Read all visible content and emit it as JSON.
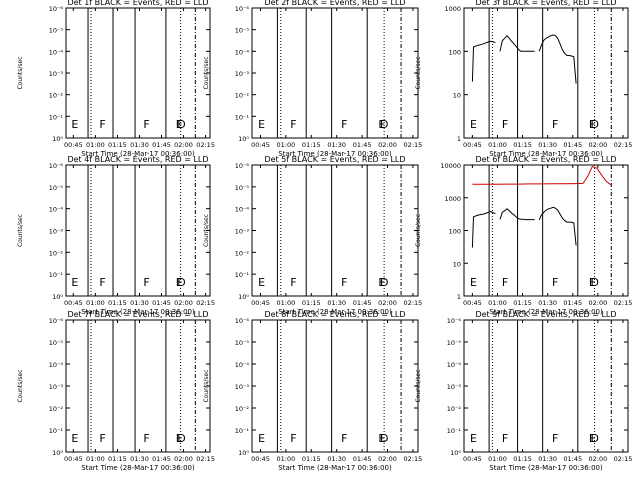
{
  "chart_data": [
    {
      "type": "line",
      "title": "Det 1f BLACK = Events, RED = LLD",
      "xlabel": "Start Time (28-Mar-17 00:36:00)",
      "ylabel": "Counts/sec",
      "x_ticks": [
        "00:45",
        "01:00",
        "01:15",
        "01:30",
        "01:45",
        "02:00",
        "02:15"
      ],
      "y_ticks": [
        "10⁰",
        "10⁻¹",
        "10⁻²",
        "10⁻³",
        "10⁻⁴",
        "10⁻⁵",
        "10⁻⁶"
      ],
      "scale": "log",
      "markers": [
        {
          "time": "00:43",
          "letter": "E"
        },
        {
          "time": "01:02",
          "letter": "F"
        },
        {
          "time": "01:32",
          "letter": "F"
        },
        {
          "time": "01:54",
          "letter": "E"
        },
        {
          "time": "01:55",
          "letter": "D"
        }
      ],
      "vlines_solid": [
        "00:55",
        "01:12",
        "01:27",
        "01:48"
      ],
      "vlines_dotted": [
        "00:57",
        "01:58"
      ],
      "vlines_dashdot": [
        "02:08"
      ],
      "series": []
    },
    {
      "type": "line",
      "title": "Det 2f BLACK = Events, RED = LLD",
      "xlabel": "Start Time (28-Mar-17 00:36:00)",
      "ylabel": "Counts/sec",
      "x_ticks": [
        "00:45",
        "01:00",
        "01:15",
        "01:30",
        "01:45",
        "02:00",
        "02:15"
      ],
      "y_ticks": [
        "10⁰",
        "10⁻¹",
        "10⁻²",
        "10⁻³",
        "10⁻⁴",
        "10⁻⁵",
        "10⁻⁶"
      ],
      "scale": "log",
      "markers": [
        {
          "time": "00:43",
          "letter": "E"
        },
        {
          "time": "01:02",
          "letter": "F"
        },
        {
          "time": "01:32",
          "letter": "F"
        },
        {
          "time": "01:54",
          "letter": "E"
        },
        {
          "time": "01:55",
          "letter": "D"
        }
      ],
      "vlines_solid": [
        "00:55",
        "01:12",
        "01:27",
        "01:48"
      ],
      "vlines_dotted": [
        "00:57",
        "01:58"
      ],
      "vlines_dashdot": [
        "02:08"
      ],
      "series": []
    },
    {
      "type": "line",
      "title": "Det 3f BLACK = Events, RED = LLD",
      "xlabel": "Start Time (28-Mar-17 00:36:00)",
      "ylabel": "Counts/sec",
      "x_ticks": [
        "00:45",
        "01:00",
        "01:15",
        "01:30",
        "01:45",
        "02:00",
        "02:15"
      ],
      "y_ticks": [
        "1",
        "10",
        "100",
        "1000"
      ],
      "scale": "log",
      "markers": [
        {
          "time": "00:43",
          "letter": "E"
        },
        {
          "time": "01:02",
          "letter": "F"
        },
        {
          "time": "01:32",
          "letter": "F"
        },
        {
          "time": "01:54",
          "letter": "E"
        },
        {
          "time": "01:55",
          "letter": "D"
        }
      ],
      "vlines_solid": [
        "00:55",
        "01:12",
        "01:27",
        "01:48"
      ],
      "vlines_dotted": [
        "00:57",
        "01:58"
      ],
      "vlines_dashdot": [
        "02:08"
      ],
      "series": [
        {
          "color": "#000000",
          "segments": [
            [
              [
                0,
                20
              ],
              [
                0.5,
                125
              ],
              [
                1,
                130
              ],
              [
                2,
                135
              ],
              [
                3,
                140
              ],
              [
                4,
                145
              ],
              [
                5,
                150
              ],
              [
                6,
                158
              ],
              [
                7,
                165
              ],
              [
                8,
                170
              ],
              [
                9,
                165
              ],
              [
                10,
                160
              ]
            ],
            [
              [
                12,
                100
              ],
              [
                13,
                175
              ],
              [
                14,
                200
              ],
              [
                15,
                230
              ],
              [
                16,
                200
              ],
              [
                17,
                170
              ],
              [
                18,
                150
              ],
              [
                19,
                130
              ],
              [
                20,
                110
              ],
              [
                21,
                100
              ],
              [
                22,
                100
              ],
              [
                23,
                100
              ],
              [
                24,
                100
              ],
              [
                25,
                100
              ],
              [
                26,
                100
              ],
              [
                27,
                100
              ]
            ],
            [
              [
                29,
                100
              ],
              [
                30,
                140
              ],
              [
                31,
                180
              ],
              [
                32,
                200
              ],
              [
                33,
                215
              ],
              [
                34,
                230
              ],
              [
                35,
                240
              ],
              [
                36,
                230
              ],
              [
                37,
                200
              ],
              [
                38,
                150
              ],
              [
                39,
                110
              ],
              [
                40,
                90
              ],
              [
                41,
                80
              ],
              [
                42,
                80
              ],
              [
                43,
                78
              ],
              [
                44,
                75
              ],
              [
                45,
                18
              ]
            ]
          ]
        }
      ]
    },
    {
      "type": "line",
      "title": "Det 4f BLACK = Events, RED = LLD",
      "xlabel": "Start Time (28-Mar-17 00:36:00)",
      "ylabel": "Counts/sec",
      "x_ticks": [
        "00:45",
        "01:00",
        "01:15",
        "01:30",
        "01:45",
        "02:00",
        "02:15"
      ],
      "y_ticks": [
        "10⁰",
        "10⁻¹",
        "10⁻²",
        "10⁻³",
        "10⁻⁴",
        "10⁻⁵",
        "10⁻⁶"
      ],
      "scale": "log",
      "markers": [
        {
          "time": "00:43",
          "letter": "E"
        },
        {
          "time": "01:02",
          "letter": "F"
        },
        {
          "time": "01:32",
          "letter": "F"
        },
        {
          "time": "01:54",
          "letter": "E"
        },
        {
          "time": "01:55",
          "letter": "D"
        }
      ],
      "vlines_solid": [
        "00:55",
        "01:12",
        "01:27",
        "01:48"
      ],
      "vlines_dotted": [
        "00:57",
        "01:58"
      ],
      "vlines_dashdot": [
        "02:08"
      ],
      "series": []
    },
    {
      "type": "line",
      "title": "Det 5f BLACK = Events, RED = LLD",
      "xlabel": "Start Time (28-Mar-17 00:36:00)",
      "ylabel": "Counts/sec",
      "x_ticks": [
        "00:45",
        "01:00",
        "01:15",
        "01:30",
        "01:45",
        "02:00",
        "02:15"
      ],
      "y_ticks": [
        "10⁰",
        "10⁻¹",
        "10⁻²",
        "10⁻³",
        "10⁻⁴",
        "10⁻⁵",
        "10⁻⁶"
      ],
      "scale": "log",
      "markers": [
        {
          "time": "00:43",
          "letter": "E"
        },
        {
          "time": "01:02",
          "letter": "F"
        },
        {
          "time": "01:32",
          "letter": "F"
        },
        {
          "time": "01:54",
          "letter": "E"
        },
        {
          "time": "01:55",
          "letter": "D"
        }
      ],
      "vlines_solid": [
        "00:55",
        "01:12",
        "01:27",
        "01:48"
      ],
      "vlines_dotted": [
        "00:57",
        "01:58"
      ],
      "vlines_dashdot": [
        "02:08"
      ],
      "series": []
    },
    {
      "type": "line",
      "title": "Det 6f BLACK = Events, RED = LLD",
      "xlabel": "Start Time (28-Mar-17 00:36:00)",
      "ylabel": "Counts/sec",
      "x_ticks": [
        "00:45",
        "01:00",
        "01:15",
        "01:30",
        "01:45",
        "02:00",
        "02:15"
      ],
      "y_ticks": [
        "1",
        "10",
        "100",
        "1000",
        "10000"
      ],
      "scale": "log",
      "markers": [
        {
          "time": "00:43",
          "letter": "E"
        },
        {
          "time": "01:02",
          "letter": "F"
        },
        {
          "time": "01:32",
          "letter": "F"
        },
        {
          "time": "01:54",
          "letter": "E"
        },
        {
          "time": "01:55",
          "letter": "D"
        }
      ],
      "vlines_solid": [
        "00:55",
        "01:12",
        "01:27",
        "01:48"
      ],
      "vlines_dotted": [
        "00:57",
        "01:58"
      ],
      "vlines_dashdot": [
        "02:08"
      ],
      "series": [
        {
          "color": "#000000",
          "segments": [
            [
              [
                0,
                30
              ],
              [
                0.5,
                260
              ],
              [
                1,
                270
              ],
              [
                2,
                290
              ],
              [
                3,
                300
              ],
              [
                4,
                310
              ],
              [
                5,
                320
              ],
              [
                6,
                340
              ],
              [
                7,
                360
              ],
              [
                8,
                380
              ],
              [
                9,
                350
              ],
              [
                10,
                330
              ]
            ],
            [
              [
                12,
                220
              ],
              [
                13,
                360
              ],
              [
                14,
                400
              ],
              [
                15,
                460
              ],
              [
                16,
                400
              ],
              [
                17,
                340
              ],
              [
                18,
                300
              ],
              [
                19,
                260
              ],
              [
                20,
                230
              ],
              [
                21,
                220
              ],
              [
                22,
                220
              ],
              [
                23,
                215
              ],
              [
                24,
                215
              ],
              [
                25,
                215
              ],
              [
                26,
                215
              ],
              [
                27,
                215
              ]
            ],
            [
              [
                29,
                210
              ],
              [
                30,
                300
              ],
              [
                31,
                360
              ],
              [
                32,
                420
              ],
              [
                33,
                460
              ],
              [
                34,
                480
              ],
              [
                35,
                510
              ],
              [
                36,
                480
              ],
              [
                37,
                420
              ],
              [
                38,
                320
              ],
              [
                39,
                240
              ],
              [
                40,
                200
              ],
              [
                41,
                180
              ],
              [
                42,
                180
              ],
              [
                43,
                178
              ],
              [
                44,
                170
              ],
              [
                45,
                35
              ]
            ]
          ]
        },
        {
          "color": "#cc0000",
          "segments": [
            [
              [
                0,
                2600
              ],
              [
                5,
                2600
              ],
              [
                10,
                2600
              ],
              [
                15,
                2620
              ],
              [
                20,
                2620
              ],
              [
                25,
                2650
              ],
              [
                30,
                2650
              ],
              [
                35,
                2660
              ],
              [
                40,
                2680
              ],
              [
                45,
                2700
              ],
              [
                48,
                2750
              ],
              [
                50,
                4500
              ],
              [
                52,
                9000
              ],
              [
                54,
                8000
              ],
              [
                56,
                5000
              ],
              [
                58,
                3200
              ],
              [
                60,
                2500
              ]
            ]
          ]
        }
      ]
    },
    {
      "type": "line",
      "title": "Det 7f BLACK = Events, RED = LLD",
      "xlabel": "Start Time (28-Mar-17 00:36:00)",
      "ylabel": "Counts/sec",
      "x_ticks": [
        "00:45",
        "01:00",
        "01:15",
        "01:30",
        "01:45",
        "02:00",
        "02:15"
      ],
      "y_ticks": [
        "10⁰",
        "10⁻¹",
        "10⁻²",
        "10⁻³",
        "10⁻⁴",
        "10⁻⁵",
        "10⁻⁶"
      ],
      "scale": "log",
      "markers": [
        {
          "time": "00:43",
          "letter": "E"
        },
        {
          "time": "01:02",
          "letter": "F"
        },
        {
          "time": "01:32",
          "letter": "F"
        },
        {
          "time": "01:54",
          "letter": "E"
        },
        {
          "time": "01:55",
          "letter": "D"
        }
      ],
      "vlines_solid": [
        "00:55",
        "01:12",
        "01:27",
        "01:48"
      ],
      "vlines_dotted": [
        "00:57",
        "01:58"
      ],
      "vlines_dashdot": [
        "02:08"
      ],
      "series": []
    },
    {
      "type": "line",
      "title": "Det 8f BLACK = Events, RED = LLD",
      "xlabel": "Start Time (28-Mar-17 00:36:00)",
      "ylabel": "Counts/sec",
      "x_ticks": [
        "00:45",
        "01:00",
        "01:15",
        "01:30",
        "01:45",
        "02:00",
        "02:15"
      ],
      "y_ticks": [
        "10⁰",
        "10⁻¹",
        "10⁻²",
        "10⁻³",
        "10⁻⁴",
        "10⁻⁵",
        "10⁻⁶"
      ],
      "scale": "log",
      "markers": [
        {
          "time": "00:43",
          "letter": "E"
        },
        {
          "time": "01:02",
          "letter": "F"
        },
        {
          "time": "01:32",
          "letter": "F"
        },
        {
          "time": "01:54",
          "letter": "E"
        },
        {
          "time": "01:55",
          "letter": "D"
        }
      ],
      "vlines_solid": [
        "00:55",
        "01:12",
        "01:27",
        "01:48"
      ],
      "vlines_dotted": [
        "00:57",
        "01:58"
      ],
      "vlines_dashdot": [
        "02:08"
      ],
      "series": []
    },
    {
      "type": "line",
      "title": "Det 9f BLACK = Events, RED = LLD",
      "xlabel": "Start Time (28-Mar-17 00:36:00)",
      "ylabel": "Counts/sec",
      "x_ticks": [
        "00:45",
        "01:00",
        "01:15",
        "01:30",
        "01:45",
        "02:00",
        "02:15"
      ],
      "y_ticks": [
        "10⁰",
        "10⁻¹",
        "10⁻²",
        "10⁻³",
        "10⁻⁴",
        "10⁻⁵",
        "10⁻⁶"
      ],
      "scale": "log",
      "markers": [
        {
          "time": "00:43",
          "letter": "E"
        },
        {
          "time": "01:02",
          "letter": "F"
        },
        {
          "time": "01:32",
          "letter": "F"
        },
        {
          "time": "01:54",
          "letter": "E"
        },
        {
          "time": "01:55",
          "letter": "D"
        }
      ],
      "vlines_solid": [
        "00:55",
        "01:12",
        "01:27",
        "01:48"
      ],
      "vlines_dotted": [
        "00:57",
        "01:58"
      ],
      "vlines_dashdot": [
        "02:08"
      ],
      "series": []
    }
  ]
}
